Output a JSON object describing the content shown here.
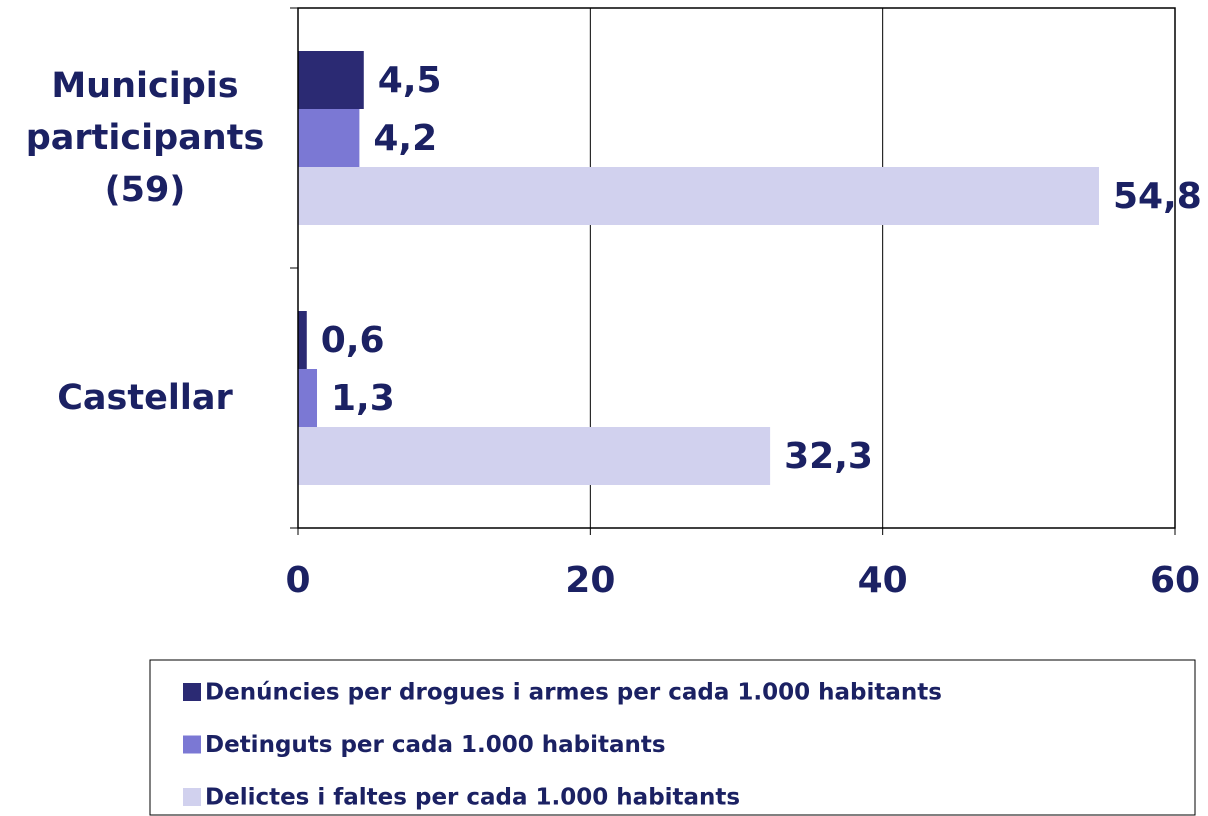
{
  "chart_data": {
    "type": "hbar",
    "categories": [
      "Municipis participants (59)",
      "Castellar"
    ],
    "series": [
      {
        "name": "Denúncies per drogues i armes per cada 1.000 habitants",
        "color": "#2b2a73",
        "values": [
          4.5,
          0.6
        ],
        "value_labels": [
          "4,5",
          "0,6"
        ]
      },
      {
        "name": "Detinguts per cada 1.000 habitants",
        "color": "#7b78d4",
        "values": [
          4.2,
          1.3
        ],
        "value_labels": [
          "4,2",
          "1,3"
        ]
      },
      {
        "name": "Delictes i  faltes per cada 1.000 habitants",
        "color": "#d1d1ee",
        "values": [
          54.8,
          32.3
        ],
        "value_labels": [
          "54,8",
          "32,3"
        ]
      }
    ],
    "xlim": [
      0,
      60
    ],
    "xticks": [
      0,
      20,
      40,
      60
    ],
    "grid": true
  }
}
